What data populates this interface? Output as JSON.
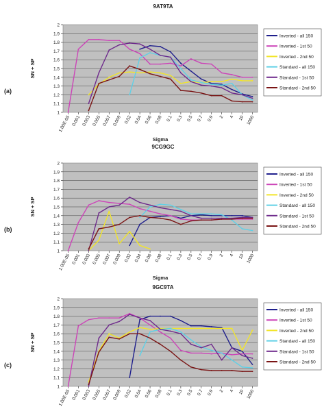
{
  "figure": {
    "legend_colors": {
      "Inverted - all 150": "#1f1f8c",
      "Inverted - 1st 50": "#cc44b8",
      "Inverted - 2nd 50": "#f2e52a",
      "Standard - all 150": "#5fd0e6",
      "Standard - 1st 50": "#6e2a8c",
      "Standard - 2nd 50": "#7a1414"
    }
  },
  "chart_data": [
    {
      "type": "line",
      "panel_label": "(a)",
      "title": "9AT9TA",
      "xlabel": "Sigma",
      "ylabel": "SN + SP",
      "x": [
        "1.00E-05",
        "0.001",
        "0.003",
        "0.005",
        "0.007",
        "0.009",
        "0.02",
        "0.04",
        "0.06",
        "0.08",
        "0.1",
        "0.3",
        "0.5",
        "0.7",
        "0.9",
        "2",
        "4",
        "10",
        "1000"
      ],
      "ylim": [
        1,
        2
      ],
      "yticks": [
        1,
        1.1,
        1.2,
        1.3,
        1.4,
        1.5,
        1.6,
        1.7,
        1.8,
        1.9,
        2
      ],
      "grid": true,
      "legend_position": "right",
      "series": [
        {
          "name": "Inverted - all 150",
          "values": [
            null,
            null,
            null,
            null,
            null,
            null,
            null,
            1.72,
            1.76,
            1.75,
            1.69,
            1.56,
            1.47,
            1.38,
            1.33,
            1.32,
            1.26,
            1.21,
            1.18
          ]
        },
        {
          "name": "Inverted - 1st 50",
          "values": [
            1.0,
            1.72,
            1.83,
            1.83,
            1.82,
            1.82,
            1.72,
            1.67,
            1.55,
            1.55,
            1.56,
            1.53,
            1.61,
            1.56,
            1.55,
            1.45,
            1.43,
            1.4,
            1.4
          ]
        },
        {
          "name": "Inverted - 2nd 50",
          "values": [
            null,
            null,
            1.2,
            1.32,
            1.4,
            1.45,
            1.46,
            1.45,
            1.46,
            1.45,
            1.42,
            1.33,
            1.35,
            1.34,
            1.35,
            1.35,
            1.38,
            1.36,
            1.36
          ]
        },
        {
          "name": "Standard - all 150",
          "values": [
            null,
            null,
            null,
            null,
            null,
            null,
            1.2,
            1.62,
            1.68,
            1.65,
            1.63,
            1.5,
            1.37,
            1.34,
            1.32,
            1.31,
            1.33,
            1.2,
            1.14
          ]
        },
        {
          "name": "Standard - 1st 50",
          "values": [
            null,
            null,
            1.1,
            1.45,
            1.71,
            1.77,
            1.79,
            1.78,
            1.72,
            1.65,
            1.63,
            1.45,
            1.35,
            1.31,
            1.3,
            1.28,
            1.22,
            1.2,
            1.16
          ]
        },
        {
          "name": "Standard - 2nd 50",
          "values": [
            null,
            null,
            1.02,
            1.33,
            1.37,
            1.41,
            1.53,
            1.49,
            1.44,
            1.41,
            1.38,
            1.25,
            1.24,
            1.22,
            1.19,
            1.19,
            1.13,
            1.12,
            1.12
          ]
        }
      ]
    },
    {
      "type": "line",
      "panel_label": "(b)",
      "title": "9CG9GC",
      "xlabel": "Sigma",
      "ylabel": "SN + SP",
      "x": [
        "1.00E-05",
        "0.001",
        "0.003",
        "0.005",
        "0.007",
        "0.009",
        "0.02",
        "0.04",
        "0.06",
        "0.08",
        "0.1",
        "0.3",
        "0.5",
        "0.7",
        "0.9",
        "2",
        "4",
        "10",
        "1000"
      ],
      "ylim": [
        1,
        2
      ],
      "yticks": [
        1,
        1.1,
        1.2,
        1.3,
        1.4,
        1.5,
        1.6,
        1.7,
        1.8,
        1.9,
        2
      ],
      "grid": true,
      "legend_position": "right",
      "series": [
        {
          "name": "Inverted - all 150",
          "values": [
            null,
            null,
            null,
            null,
            null,
            null,
            1.06,
            1.3,
            1.38,
            1.39,
            1.4,
            1.37,
            1.4,
            1.41,
            1.4,
            1.4,
            1.4,
            1.4,
            1.38
          ]
        },
        {
          "name": "Inverted - 1st 50",
          "values": [
            1.0,
            1.32,
            1.52,
            1.57,
            1.55,
            1.54,
            1.53,
            1.48,
            1.45,
            1.42,
            1.4,
            1.36,
            1.35,
            1.35,
            1.35,
            1.36,
            1.36,
            1.36,
            1.36
          ]
        },
        {
          "name": "Inverted - 2nd 50",
          "values": [
            null,
            null,
            1.0,
            1.12,
            1.45,
            1.08,
            1.22,
            1.06,
            1.02,
            null,
            null,
            null,
            null,
            null,
            null,
            null,
            null,
            null,
            null
          ]
        },
        {
          "name": "Standard - all 150",
          "values": [
            null,
            null,
            null,
            null,
            null,
            null,
            null,
            1.38,
            1.5,
            1.53,
            1.52,
            1.47,
            1.42,
            1.42,
            1.42,
            1.41,
            1.35,
            1.25,
            1.23
          ]
        },
        {
          "name": "Standard - 1st 50",
          "values": [
            null,
            null,
            1.0,
            1.43,
            1.5,
            1.52,
            1.61,
            1.55,
            1.52,
            1.49,
            1.47,
            1.45,
            1.4,
            1.37,
            1.37,
            1.37,
            1.37,
            1.38,
            1.38
          ]
        },
        {
          "name": "Standard - 2nd 50",
          "values": [
            null,
            null,
            1.02,
            1.25,
            1.27,
            1.3,
            1.38,
            1.4,
            1.38,
            1.37,
            1.35,
            1.3,
            1.34,
            1.35,
            1.35,
            1.36,
            1.36,
            1.37,
            1.37
          ]
        }
      ]
    },
    {
      "type": "line",
      "panel_label": "(c)",
      "title": "9GC9TA",
      "xlabel": "Sigma",
      "ylabel": "SN + SP",
      "x": [
        "1.00E-05",
        "0.001",
        "0.003",
        "0.005",
        "0.007",
        "0.009",
        "0.02",
        "0.04",
        "0.06",
        "0.08",
        "0.1",
        "0.3",
        "0.5",
        "0.7",
        "0.9",
        "2",
        "4",
        "10",
        "1000"
      ],
      "ylim": [
        1,
        2
      ],
      "yticks": [
        1,
        1.1,
        1.2,
        1.3,
        1.4,
        1.5,
        1.6,
        1.7,
        1.8,
        1.9,
        2
      ],
      "grid": true,
      "legend_position": "right",
      "series": [
        {
          "name": "Inverted - all 150",
          "values": [
            null,
            null,
            null,
            null,
            null,
            null,
            1.1,
            1.76,
            1.8,
            1.8,
            1.8,
            1.75,
            1.69,
            1.69,
            1.68,
            1.67,
            1.44,
            1.4,
            1.25
          ]
        },
        {
          "name": "Inverted - 1st 50",
          "values": [
            1.0,
            1.69,
            1.76,
            1.78,
            1.78,
            1.78,
            1.83,
            1.78,
            1.7,
            1.62,
            1.55,
            1.41,
            1.38,
            1.38,
            1.37,
            1.38,
            1.36,
            1.37,
            1.37
          ]
        },
        {
          "name": "Inverted - 2nd 50",
          "values": [
            null,
            null,
            1.05,
            1.4,
            1.6,
            1.55,
            1.62,
            1.67,
            1.65,
            1.66,
            1.66,
            1.66,
            1.66,
            1.66,
            1.66,
            1.66,
            1.66,
            1.41,
            1.64
          ]
        },
        {
          "name": "Standard - all 150",
          "values": [
            null,
            null,
            null,
            null,
            null,
            null,
            null,
            1.35,
            1.62,
            1.65,
            1.66,
            1.62,
            1.53,
            1.45,
            1.41,
            1.38,
            1.3,
            1.22,
            1.21
          ]
        },
        {
          "name": "Standard - 1st 50",
          "values": [
            null,
            null,
            1.0,
            1.55,
            1.7,
            1.74,
            1.82,
            1.78,
            1.75,
            1.65,
            1.63,
            1.6,
            1.48,
            1.44,
            1.48,
            1.3,
            1.44,
            1.35,
            1.32
          ]
        },
        {
          "name": "Standard - 2nd 50",
          "values": [
            null,
            null,
            1.02,
            1.39,
            1.56,
            1.54,
            1.6,
            1.6,
            1.55,
            1.48,
            1.4,
            1.3,
            1.22,
            1.19,
            1.18,
            1.18,
            1.18,
            1.17,
            1.17
          ]
        }
      ]
    }
  ]
}
